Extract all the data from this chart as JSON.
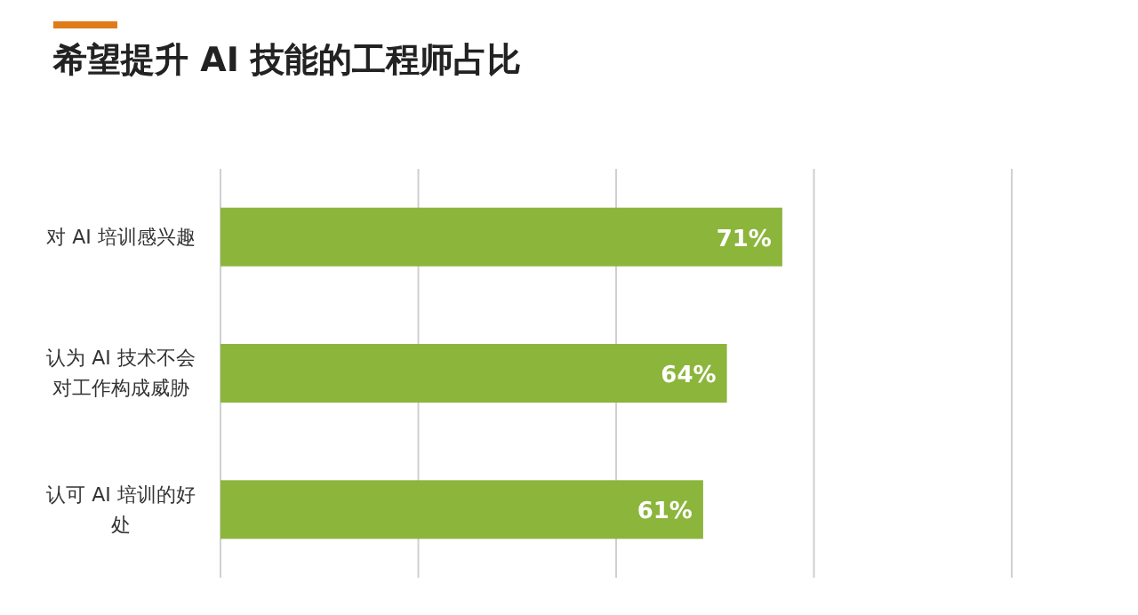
{
  "chart_data": {
    "type": "bar",
    "orientation": "horizontal",
    "title": "希望提升 AI 技能的工程师占比",
    "categories": [
      "对 AI 培训感兴趣",
      "认为 AI 技术不会对工作构成威胁",
      "认可 AI 培训的好处"
    ],
    "values": [
      71,
      64,
      61
    ],
    "value_labels": [
      "71%",
      "64%",
      "61%"
    ],
    "color": "#8cb53b",
    "xlim": [
      0,
      100
    ],
    "xticks": [
      {
        "value": 0,
        "label": null
      },
      {
        "value": 25,
        "label": null
      },
      {
        "value": 50,
        "label": null
      },
      {
        "value": 75,
        "label": null
      },
      {
        "value": 100,
        "label": null
      }
    ],
    "grid": "x"
  }
}
